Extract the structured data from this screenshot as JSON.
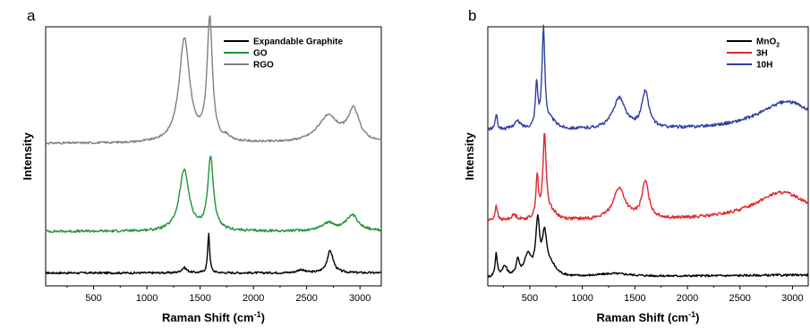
{
  "chart_data": [
    {
      "panel_label": "a",
      "type": "line",
      "xlabel": "Raman Shift (cm-1)",
      "xlabel_main": "Raman Shift (cm",
      "xlabel_sup": "-1",
      "xlabel_tail": ")",
      "ylabel": "Intensity",
      "xlim": [
        50,
        3200
      ],
      "xticks": [
        500,
        1000,
        1500,
        2000,
        2500,
        3000
      ],
      "y_tick_labels": false,
      "grid": false,
      "legend": "top-right",
      "legend_entries": [
        "Expandable Graphite",
        "GO",
        "RGO"
      ],
      "note": "y axis has no numeric scale; curves are vertically offset, values are relative intensity",
      "series": [
        {
          "name": "Expandable Graphite",
          "color": "#000000",
          "baseline": 0.05,
          "base_level": 0.0,
          "slope": 0.0,
          "noise": 0.004,
          "peaks": [
            {
              "x": 1350,
              "h": 0.02,
              "w": 30
            },
            {
              "x": 1580,
              "h": 0.155,
              "w": 11
            },
            {
              "x": 2445,
              "h": 0.012,
              "w": 40
            },
            {
              "x": 2720,
              "h": 0.085,
              "w": 35
            }
          ]
        },
        {
          "name": "GO",
          "color": "#1e9437",
          "baseline": 0.21,
          "base_level": 0.0,
          "slope": 0.0,
          "noise": 0.005,
          "peaks": [
            {
              "x": 1350,
              "h": 0.235,
              "w": 55
            },
            {
              "x": 1598,
              "h": 0.28,
              "w": 32
            },
            {
              "x": 2700,
              "h": 0.03,
              "w": 80
            },
            {
              "x": 2930,
              "h": 0.06,
              "w": 70
            }
          ]
        },
        {
          "name": "RGO",
          "color": "#808080",
          "baseline": 0.55,
          "base_level": 0.0,
          "slope": 0.0,
          "noise": 0.004,
          "peaks": [
            {
              "x": 1352,
              "h": 0.4,
              "w": 60
            },
            {
              "x": 1590,
              "h": 0.47,
              "w": 30
            },
            {
              "x": 1750,
              "h": 0.015,
              "w": 30
            },
            {
              "x": 2700,
              "h": 0.1,
              "w": 120
            },
            {
              "x": 2940,
              "h": 0.12,
              "w": 65
            }
          ]
        }
      ]
    },
    {
      "panel_label": "b",
      "type": "line",
      "xlabel": "Raman Shift (cm-1)",
      "xlabel_main": "Raman Shift (cm",
      "xlabel_sup": "-1",
      "xlabel_tail": ")",
      "ylabel": "Intensity",
      "xlim": [
        100,
        3150
      ],
      "xticks": [
        500,
        1000,
        1500,
        2000,
        2500,
        3000
      ],
      "y_tick_labels": false,
      "grid": false,
      "legend": "top-right",
      "legend_entries": [
        "MnO2",
        "3H",
        "10H"
      ],
      "note": "y axis has no numeric scale; curves are vertically offset, values are relative intensity",
      "series": [
        {
          "name": "MnO2",
          "legend_main": "MnO",
          "legend_sub": "2",
          "color": "#000000",
          "baseline": 0.03,
          "base_level": 0.0,
          "slope": 4e-06,
          "noise": 0.004,
          "peaks": [
            {
              "x": 180,
              "h": 0.09,
              "w": 12
            },
            {
              "x": 260,
              "h": 0.04,
              "w": 30
            },
            {
              "x": 385,
              "h": 0.06,
              "w": 18
            },
            {
              "x": 480,
              "h": 0.08,
              "w": 40
            },
            {
              "x": 575,
              "h": 0.2,
              "w": 22
            },
            {
              "x": 640,
              "h": 0.15,
              "w": 25
            },
            {
              "x": 700,
              "h": 0.04,
              "w": 60
            },
            {
              "x": 1300,
              "h": 0.012,
              "w": 200
            }
          ]
        },
        {
          "name": "3H",
          "color": "#e0262d",
          "baseline": 0.25,
          "base_level": 0.0,
          "slope": 0.0,
          "noise": 0.006,
          "peaks": [
            {
              "x": 180,
              "h": 0.06,
              "w": 12
            },
            {
              "x": 350,
              "h": 0.02,
              "w": 30
            },
            {
              "x": 570,
              "h": 0.16,
              "w": 14
            },
            {
              "x": 640,
              "h": 0.32,
              "w": 18
            },
            {
              "x": 700,
              "h": 0.03,
              "w": 60
            },
            {
              "x": 1350,
              "h": 0.12,
              "w": 70
            },
            {
              "x": 1600,
              "h": 0.14,
              "w": 40
            },
            {
              "x": 2900,
              "h": 0.11,
              "w": 330
            }
          ]
        },
        {
          "name": "10H",
          "color": "#2f3fa3",
          "baseline": 0.6,
          "base_level": 0.0,
          "slope": 0.0,
          "noise": 0.006,
          "peaks": [
            {
              "x": 180,
              "h": 0.06,
              "w": 12
            },
            {
              "x": 380,
              "h": 0.03,
              "w": 40
            },
            {
              "x": 565,
              "h": 0.17,
              "w": 14
            },
            {
              "x": 630,
              "h": 0.38,
              "w": 16
            },
            {
              "x": 700,
              "h": 0.03,
              "w": 60
            },
            {
              "x": 1350,
              "h": 0.12,
              "w": 70
            },
            {
              "x": 1600,
              "h": 0.14,
              "w": 40
            },
            {
              "x": 2950,
              "h": 0.11,
              "w": 330
            }
          ]
        }
      ]
    }
  ]
}
